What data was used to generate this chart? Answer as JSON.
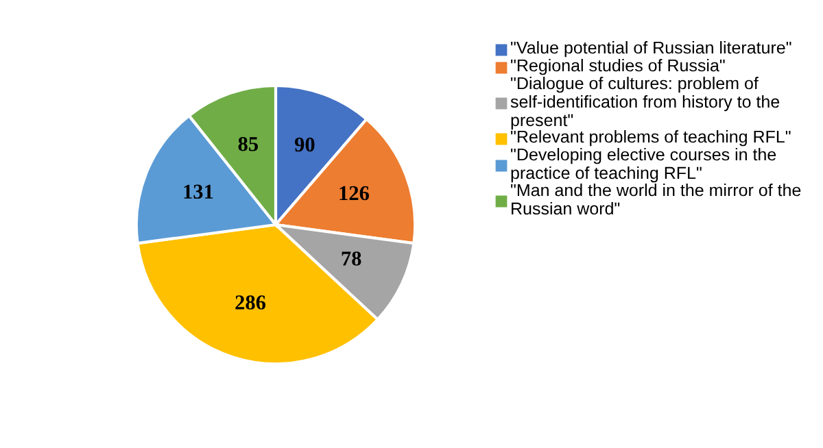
{
  "chart_data": {
    "type": "pie",
    "categories": [
      "\"Value potential of Russian literature\"",
      "\"Regional studies of Russia\"",
      "\"Dialogue of cultures: problem of self-identification from history to the present\"",
      "\"Relevant problems of teaching RFL\"",
      "\"Developing elective courses in the practice of teaching RFL\"",
      "\"Man and the world in the mirror of the Russian word\""
    ],
    "values": [
      90,
      126,
      78,
      286,
      131,
      85
    ],
    "colors": [
      "#4472c4",
      "#ed7d31",
      "#a5a5a5",
      "#ffc000",
      "#5b9bd5",
      "#70ad47"
    ],
    "data_labels": true,
    "legend": "right"
  }
}
